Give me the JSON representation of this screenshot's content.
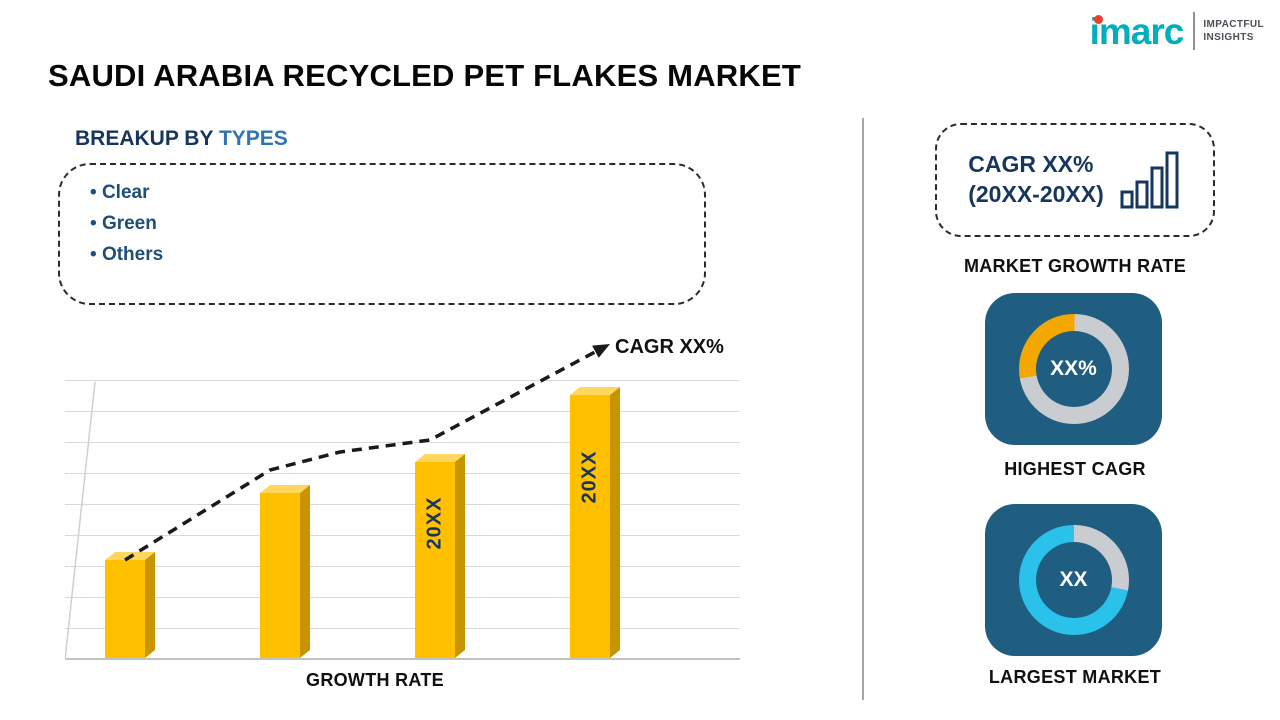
{
  "title": "SAUDI ARABIA RECYCLED PET FLAKES MARKET",
  "logo": {
    "brand": "imarc",
    "tagline1": "IMPACTFUL",
    "tagline2": "INSIGHTS"
  },
  "breakup": {
    "heading_prefix": "BREAKUP BY",
    "heading_highlight": "TYPES",
    "items": [
      "Clear",
      "Green",
      "Others"
    ]
  },
  "growth_box": {
    "line1": "CAGR XX%",
    "line2": "(20XX-20XX)",
    "label": "MARKET GROWTH RATE"
  },
  "chart_data": [
    {
      "type": "bar",
      "categories": [
        "",
        "",
        "20XX",
        "20XX"
      ],
      "bar_labels": [
        "",
        "",
        "20XX",
        "20XX"
      ],
      "values": [
        35,
        59,
        70,
        94
      ],
      "value_scale": "percent_of_plot_height",
      "xlabel": "GROWTH RATE",
      "annotation": "CAGR XX%",
      "trend": "dashed-arrow-increasing",
      "bar_color": "#FFC000",
      "grid": true
    },
    {
      "type": "donut",
      "label": "HIGHEST CAGR",
      "center_text": "XX%",
      "segment_percent": 28,
      "segment_color": "#F2A800",
      "track_color": "#C9CDD1",
      "start_angle": -100,
      "segment_first": true
    },
    {
      "type": "donut",
      "label": "LARGEST MARKET",
      "center_text": "XX",
      "segment_percent": 72,
      "segment_color": "#2AC1EA",
      "track_color": "#C9CDD1",
      "start_angle": 0,
      "segment_first": false
    }
  ],
  "colors": {
    "accent_navy": "#17365D",
    "accent_blue": "#2E75B6",
    "bar_gold": "#FFC000",
    "card_blue": "#1F5E80",
    "donut_track": "#C9CDD1",
    "donut_gold": "#F2A800",
    "donut_cyan": "#2AC1EA",
    "brand_teal": "#00AEBC",
    "brand_red": "#E8402A"
  }
}
